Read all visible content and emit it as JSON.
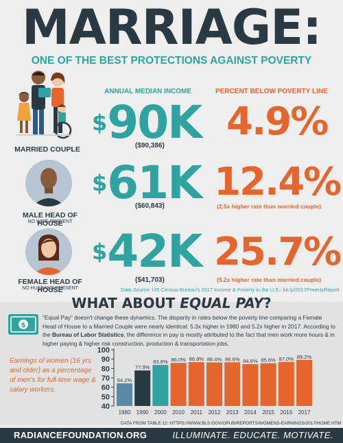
{
  "header": {
    "title": "MARRIAGE:",
    "subtitle": "ONE OF THE BEST PROTECTIONS AGAINST POVERTY"
  },
  "columns": {
    "income": "ANNUAL MEDIAN INCOME",
    "poverty": "PERCENT BELOW POVERTY LINE"
  },
  "rows": [
    {
      "label": "MARRIED COUPLE",
      "sublabel": "",
      "income": "90K",
      "income_exact": "($90,386)",
      "poverty": "4.9%",
      "note": ""
    },
    {
      "label": "MALE HEAD OF HOUSE",
      "sublabel": "NO WIFE PRESENT",
      "income": "61K",
      "income_exact": "($60,843)",
      "poverty": "12.4%",
      "note": "(2.5x higher rate than married couple)"
    },
    {
      "label": "FEMALE HEAD OF HOUSE",
      "sublabel": "NO HUSBAND PRESENT",
      "income": "42K",
      "income_exact": "($41,703)",
      "poverty": "25.7%",
      "note": "(5.2x higher rate than married couple)"
    }
  ],
  "currency_symbol": "$",
  "source": "Data Source: US Census Bureau's 2017 Income & Poverty in the U.S.: bit.ly/2017PovertyReport",
  "equal_pay": {
    "title_pre": "WHAT ABOUT ",
    "title_em": "EQUAL PAY",
    "title_post": "?",
    "p1": "“Equal Pay” doesn't change these dynamics. The disparity in rates below the poverty line comparing a Female Head of House to a Married Couple were nearly identical: 5.3x higher in 1980 and 5.2x higher in 2017. According to the ",
    "p_bold": "Bureau of Labor Statistics",
    "p2": ", the difference in pay is mostly attributed to the fact that men work more hours & in higher paying & higher risk construction, production & transportation jobs.",
    "icon": "money-icon"
  },
  "chart_note": "Earnings of women (16 yrs and older) as a percentage of men's for full-time wage & salary workers.",
  "chart_source": "DATA FROM TABLE 12: HTTPS://WWW.BLS.GOV/OPUB/REPORTS/WOMENS-EARNINGS/2017/HOME.HTM",
  "chart_data": {
    "type": "bar",
    "categories": [
      "1980",
      "1990",
      "2000",
      "2010",
      "2011",
      "2012",
      "2013",
      "2014",
      "2015",
      "2016",
      "2017"
    ],
    "values": [
      64.2,
      77.9,
      83.8,
      86.0,
      86.8,
      86.4,
      86.6,
      84.6,
      85.6,
      87.0,
      89.2
    ],
    "data_labels": [
      "64.2%",
      "77.9%",
      "83.8%",
      "86.0%",
      "86.8%",
      "86.4%",
      "86.6%",
      "84.6%",
      "85.6%",
      "87.0%",
      "89.2%"
    ],
    "bar_colors": [
      "#5b8aa8",
      "#2b3a42",
      "#2ea3a0",
      "#e5652c",
      "#e5652c",
      "#e5652c",
      "#e5652c",
      "#e5652c",
      "#e5652c",
      "#e5652c",
      "#e5652c"
    ],
    "yticks": [
      40,
      50,
      60,
      70,
      80,
      90,
      100
    ],
    "ylim": [
      40,
      100
    ],
    "grid": false
  },
  "footer": {
    "site": "RADIANCEFOUNDATION.ORG",
    "tagline": "ILLUMINATE. EDUCATE. MOTIVATE."
  },
  "colors": {
    "teal": "#2ea3a0",
    "orange": "#e5652c",
    "navy": "#2b3a42"
  }
}
